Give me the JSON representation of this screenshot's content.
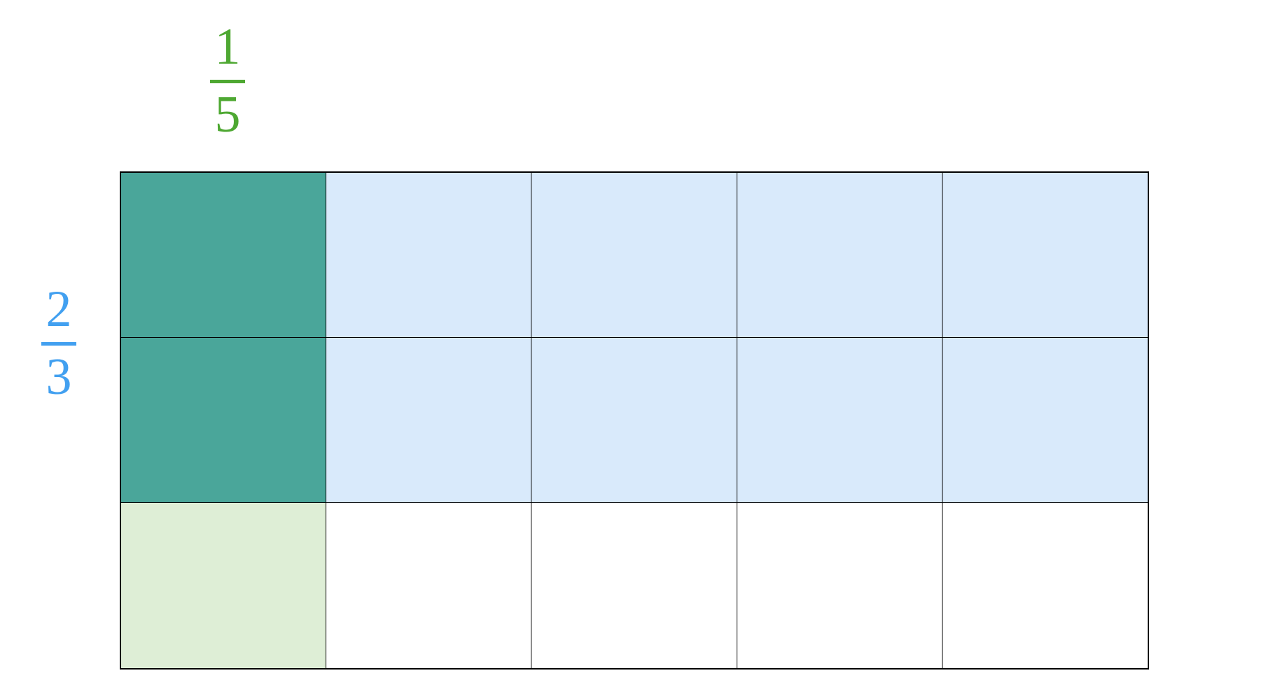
{
  "top_fraction": {
    "numerator": "1",
    "denominator": "5",
    "color": "#4ea832"
  },
  "side_fraction": {
    "numerator": "2",
    "denominator": "3",
    "color": "#42a0f0"
  },
  "grid": {
    "rows": 3,
    "columns": 5,
    "colors": {
      "overlap": "#4aa69a",
      "row_shaded": "#d9eafb",
      "column_shaded": "#deeed6",
      "empty": "#ffffff"
    },
    "shaded_rows": 2,
    "shaded_columns": 1
  }
}
